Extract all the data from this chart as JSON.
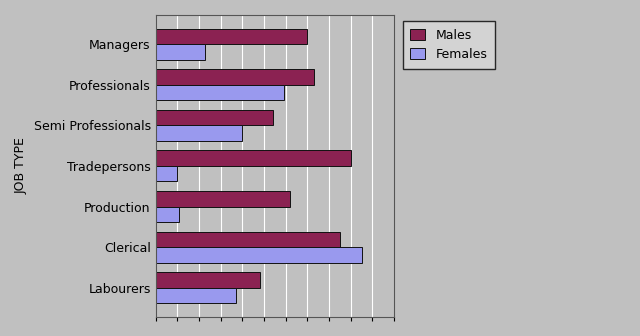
{
  "categories": [
    "Labourers",
    "Clerical",
    "Production",
    "Tradepersons",
    "Semi Professionals",
    "Professionals",
    "Managers"
  ],
  "males": [
    480,
    850,
    620,
    900,
    540,
    730,
    700
  ],
  "females": [
    370,
    950,
    110,
    100,
    400,
    590,
    230
  ],
  "male_color": "#8B2252",
  "female_color": "#9999EE",
  "bar_edge_color": "#111111",
  "background_color": "#C0C0C0",
  "fig_color": "#C0C0C0",
  "ylabel": "JOB TYPE",
  "xlim": [
    0,
    1050
  ],
  "xtick_step": 100,
  "legend_labels": [
    "Males",
    "Females"
  ],
  "bar_height": 0.38,
  "title_fontsize": 9,
  "ylabel_fontsize": 9,
  "tick_fontsize": 9,
  "legend_fontsize": 9
}
